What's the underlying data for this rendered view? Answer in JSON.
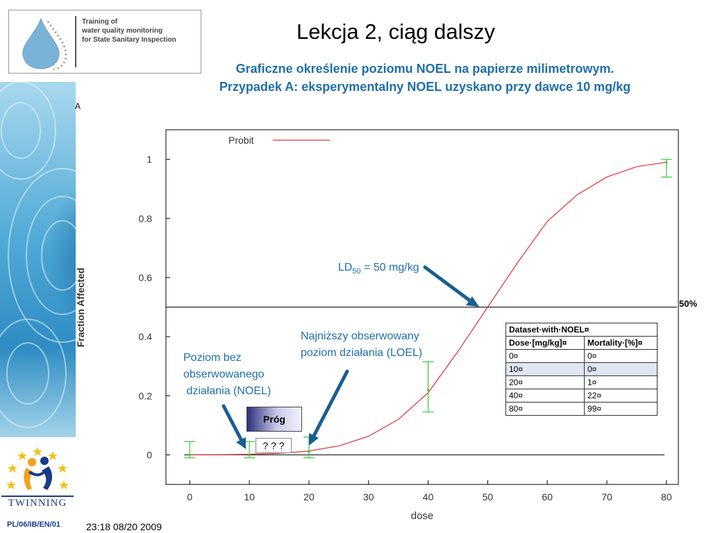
{
  "header": {
    "logo_text": "Training of\nwater quality monitoring\nfor State Sanitary Inspection",
    "title": "Lekcja 2, ciąg dalszy",
    "subtitle_line1": "Graficzne określenie poziomu NOEL na papierze milimetrowym.",
    "subtitle_line2": "Przypadek A: eksperymentalny NOEL uzyskano przy dawce 10 mg/kg"
  },
  "footer": {
    "code": "PL/06/IB/EN/01",
    "date": "23:18 08/20 2009",
    "twinning": "TWINNING"
  },
  "sidebar_fragment": "A",
  "annotations": {
    "ld50_prefix": "LD",
    "ld50_sub": "50",
    "ld50_suffix": " = 50 mg/kg",
    "loel": "Najniższy obserwowany\npoziom działania (LOEL)",
    "noel": "Poziom bez\nobserwowanego\n działania (NOEL)",
    "prog": "Próg",
    "unknown": "? ? ?",
    "fifty_percent": "50%"
  },
  "dataset_table": {
    "title": "Dataset·with·NOEL¤",
    "headers": [
      "Dose·[mg/kg]¤",
      "Mortality·[%]¤"
    ],
    "rows": [
      [
        "0¤",
        "0¤"
      ],
      [
        "10¤",
        "0¤"
      ],
      [
        "20¤",
        "1¤"
      ],
      [
        "40¤",
        "22¤"
      ],
      [
        "80¤",
        "99¤"
      ]
    ],
    "highlight_row": 1
  },
  "colors": {
    "curve": "#e03030",
    "error_bars": "#33cc33",
    "arrows": "#1a5f8f",
    "annotation_text": "#1f6fa8"
  },
  "chart_data": {
    "type": "line",
    "xlabel": "dose",
    "ylabel": "Fraction Affected",
    "xlim": [
      -4,
      82
    ],
    "ylim": [
      -0.1,
      1.1
    ],
    "x_ticks": [
      0,
      10,
      20,
      30,
      40,
      50,
      60,
      70,
      80
    ],
    "y_ticks": [
      0,
      0.2,
      0.4,
      0.6,
      0.8,
      1
    ],
    "x_tick_labels": [
      "0",
      "10",
      "20",
      "30",
      "40",
      "50",
      "60",
      "70",
      "80"
    ],
    "y_tick_labels": [
      "0",
      "0.2",
      "0.4",
      "0.6",
      "0.8",
      "1"
    ],
    "legend": {
      "label": "Probit",
      "position": "top-left"
    },
    "series": [
      {
        "name": "Probit",
        "x": [
          0,
          5,
          10,
          15,
          20,
          25,
          30,
          35,
          40,
          45,
          50,
          55,
          60,
          65,
          70,
          75,
          80
        ],
        "y": [
          0,
          0.0004,
          0.002,
          0.005,
          0.013,
          0.03,
          0.063,
          0.12,
          0.21,
          0.35,
          0.5,
          0.65,
          0.79,
          0.88,
          0.94,
          0.975,
          0.99
        ]
      }
    ],
    "observations": [
      {
        "x": 0,
        "y": 0.0,
        "low": -0.01,
        "high": 0.045
      },
      {
        "x": 10,
        "y": 0.0,
        "low": -0.01,
        "high": 0.045
      },
      {
        "x": 20,
        "y": 0.01,
        "low": -0.01,
        "high": 0.06
      },
      {
        "x": 40,
        "y": 0.22,
        "low": 0.145,
        "high": 0.315
      },
      {
        "x": 80,
        "y": 0.99,
        "low": 0.94,
        "high": 1.0
      }
    ],
    "reference_lines": [
      {
        "axis": "y",
        "value": 0.5
      },
      {
        "axis": "y",
        "value": 0
      }
    ]
  }
}
